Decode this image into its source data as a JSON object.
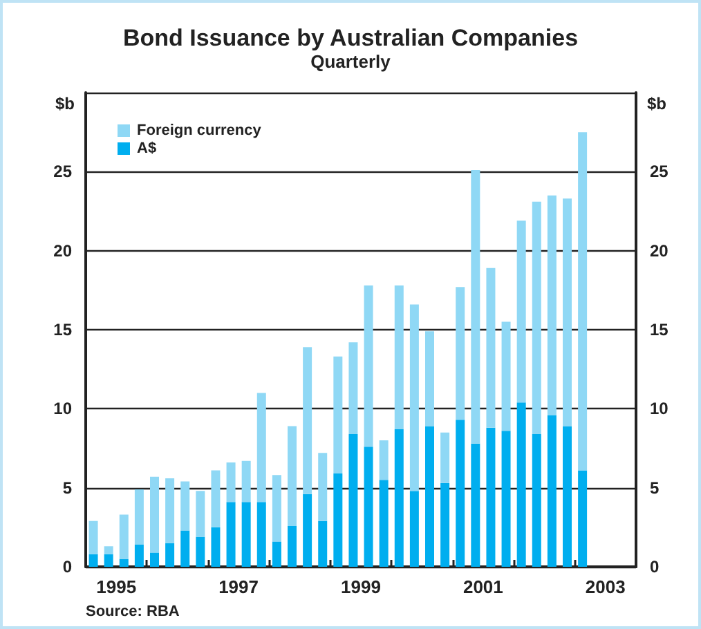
{
  "chart_data": {
    "type": "bar",
    "title": "Bond Issuance by Australian Companies",
    "subtitle": "Quarterly",
    "ylabel": "$b",
    "y2label": "$b",
    "categories": [
      null,
      "1995",
      null,
      null,
      null,
      null,
      null,
      null,
      null,
      "1997",
      null,
      null,
      null,
      null,
      null,
      null,
      null,
      "1999",
      null,
      null,
      null,
      null,
      null,
      null,
      null,
      "2001",
      null,
      null,
      null,
      null,
      null,
      null,
      null,
      "2003",
      null,
      null
    ],
    "stacked": true,
    "series": [
      {
        "name": "A$",
        "color": "#00aeef",
        "values": [
          0.8,
          0.8,
          0.5,
          1.4,
          0.9,
          1.5,
          2.3,
          1.9,
          2.5,
          4.1,
          4.1,
          4.1,
          1.6,
          2.6,
          4.6,
          2.9,
          5.9,
          8.4,
          7.6,
          5.5,
          8.7,
          4.8,
          8.9,
          5.3,
          9.3,
          7.8,
          8.8,
          8.6,
          10.4,
          8.4,
          9.6,
          8.9,
          6.1,
          null,
          null,
          null
        ]
      },
      {
        "name": "Foreign currency",
        "color": "#8fd8f5",
        "values": [
          2.1,
          0.5,
          2.8,
          3.5,
          4.8,
          4.1,
          3.1,
          2.9,
          3.6,
          2.5,
          2.6,
          6.9,
          4.2,
          6.3,
          9.3,
          4.3,
          7.4,
          5.8,
          10.2,
          2.5,
          9.1,
          11.8,
          6.0,
          3.2,
          8.4,
          17.3,
          10.1,
          6.9,
          11.5,
          14.7,
          13.9,
          14.4,
          21.4,
          null,
          null,
          null
        ]
      }
    ],
    "ylim": [
      0,
      30
    ],
    "yticks": [
      0,
      5,
      10,
      15,
      20,
      25
    ],
    "y2lim": [
      0,
      30
    ],
    "y2ticks": [
      0,
      5,
      10,
      15,
      20,
      25
    ],
    "grid": "y",
    "legend": "top left",
    "annotations": [
      "Source: RBA"
    ]
  }
}
